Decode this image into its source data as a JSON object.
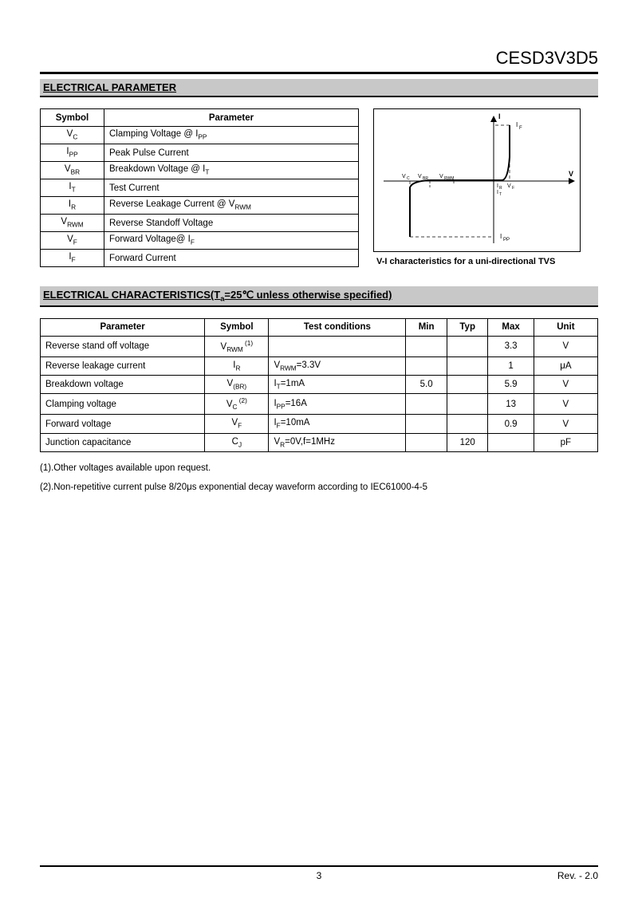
{
  "header": {
    "part_number": "CESD3V3D5"
  },
  "section1": {
    "title": "ELECTRICAL PARAMETER",
    "table_headers": {
      "symbol": "Symbol",
      "parameter": "Parameter"
    },
    "rows": [
      {
        "sym_html": "V<sub>C</sub>",
        "param_html": "Clamping Voltage @ I<sub>PP</sub>"
      },
      {
        "sym_html": "I<sub>PP</sub>",
        "param_html": "Peak Pulse Current"
      },
      {
        "sym_html": "V<sub>BR</sub>",
        "param_html": "Breakdown Voltage @ I<sub>T</sub>"
      },
      {
        "sym_html": "I<sub>T</sub>",
        "param_html": "Test Current"
      },
      {
        "sym_html": "I<sub>R</sub>",
        "param_html": "Reverse Leakage Current @ V<sub>RWM</sub>"
      },
      {
        "sym_html": "V<sub>RWM</sub>",
        "param_html": "Reverse Standoff Voltage"
      },
      {
        "sym_html": "V<sub>F</sub>",
        "param_html": "Forward Voltage@ I<sub>F</sub>"
      },
      {
        "sym_html": "I<sub>F</sub>",
        "param_html": "Forward Current"
      }
    ],
    "graph": {
      "caption": "V-I characteristics for a uni-directional TVS",
      "axis_color": "#000000",
      "dash_color": "#000000",
      "curve_color": "#000000",
      "labels": {
        "I": "I",
        "IF": "I<sub>F</sub>",
        "V": "V",
        "VC": "V<sub>C</sub>",
        "VBR": "V<sub>BR</sub>",
        "VRWM": "V<sub>RWM</sub>",
        "IR": "I<sub>R</sub>",
        "IT": "I<sub>T</sub>",
        "VF": "V<sub>F</sub>",
        "IPP": "I<sub>PP</sub>"
      }
    }
  },
  "section2": {
    "title_html": "ELECTRICAL CHARACTERISTICS(T<sub>a</sub>=25℃ unless otherwise specified)",
    "headers": {
      "param": "Parameter",
      "sym": "Symbol",
      "cond": "Test conditions",
      "min": "Min",
      "typ": "Typ",
      "max": "Max",
      "unit": "Unit"
    },
    "rows": [
      {
        "param": "Reverse stand off voltage",
        "sym_html": "V<sub>RWM</sub><sup> (1)</sup>",
        "cond_html": "",
        "min": "",
        "typ": "",
        "max": "3.3",
        "unit": "V"
      },
      {
        "param": "Reverse leakage current",
        "sym_html": "I<sub>R</sub>",
        "cond_html": "V<sub>RWM</sub>=3.3V",
        "min": "",
        "typ": "",
        "max": "1",
        "unit": "μA"
      },
      {
        "param": "Breakdown voltage",
        "sym_html": "V<sub>(BR)</sub>",
        "cond_html": "I<sub>T</sub>=1mA",
        "min": "5.0",
        "typ": "",
        "max": "5.9",
        "unit": "V"
      },
      {
        "param": "Clamping voltage",
        "sym_html": "V<sub>C</sub><sup> (2)</sup>",
        "cond_html": "I<sub>PP</sub>=16A",
        "min": "",
        "typ": "",
        "max": "13",
        "unit": "V"
      },
      {
        "param": "Forward voltage",
        "sym_html": "V<sub>F</sub>",
        "cond_html": "I<sub>F</sub>=10mA",
        "min": "",
        "typ": "",
        "max": "0.9",
        "unit": "V"
      },
      {
        "param": "Junction capacitance",
        "sym_html": "C<sub>J</sub>",
        "cond_html": "V<sub>R</sub>=0V,f=1MHz",
        "min": "",
        "typ": "120",
        "max": "",
        "unit": "pF"
      }
    ],
    "notes": [
      "(1).Other voltages available upon request.",
      "(2).Non-repetitive current pulse 8/20μs exponential decay waveform according to IEC61000-4-5"
    ]
  },
  "footer": {
    "page": "3",
    "rev": "Rev. - 2.0"
  }
}
